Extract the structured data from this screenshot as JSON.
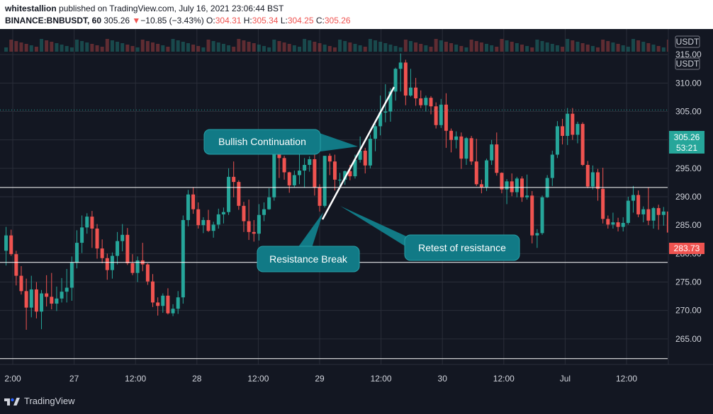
{
  "header": {
    "author": "whitestallion",
    "published_text": " published on TradingView.com, July 16, 2021 23:06:44 BST",
    "symbol": "BINANCE:BNBUSDT, 60",
    "last": "305.26",
    "change_arrow": "▼",
    "change": "−10.85 (−3.43%)",
    "o_label": "O:",
    "o": "304.31",
    "h_label": "H:",
    "h": "305.34",
    "l_label": "L:",
    "l": "304.25",
    "c_label": "C:",
    "c": "305.26"
  },
  "colors": {
    "background": "#131722",
    "up": "#26a69a",
    "down": "#ef5350",
    "callout": "#117a86",
    "grid": "#2a2e39",
    "axis_text": "#d1d4dc"
  },
  "chart_data": {
    "type": "candlestick",
    "ylim": [
      260.5,
      319.5
    ],
    "currency_labels": [
      "USDT",
      "USDT"
    ],
    "y_ticks": [
      "265.00",
      "270.00",
      "275.00",
      "280.00",
      "285.00",
      "290.00",
      "295.00",
      "300.00",
      "305.00",
      "310.00",
      "315.00"
    ],
    "x_ticks": [
      "2:00",
      "27",
      "12:00",
      "28",
      "12:00",
      "29",
      "12:00",
      "30",
      "12:00",
      "Jul",
      "12:00"
    ],
    "horizontal_levels": [
      "291.64",
      "278.46",
      "261.52"
    ],
    "current_price": "305.26",
    "countdown": "53:21",
    "last_close_label": "283.73",
    "annotations": [
      "Bullish Continuation",
      "Resistance Break",
      "Retest of resistance"
    ],
    "candles": [
      [
        280.5,
        284.7,
        277.9,
        283.2
      ],
      [
        283.2,
        284.2,
        279.6,
        279.9
      ],
      [
        279.9,
        280.5,
        274.4,
        276.1
      ],
      [
        276.1,
        277.8,
        272.8,
        273.4
      ],
      [
        273.4,
        275.6,
        266.6,
        270.5
      ],
      [
        270.5,
        276.1,
        268.8,
        273.7
      ],
      [
        273.7,
        275.0,
        268.6,
        269.8
      ],
      [
        269.8,
        273.6,
        266.7,
        273.0
      ],
      [
        273.0,
        276.2,
        270.7,
        272.4
      ],
      [
        272.4,
        276.6,
        270.2,
        271.2
      ],
      [
        271.2,
        274.2,
        269.9,
        272.1
      ],
      [
        272.1,
        275.7,
        271.4,
        273.3
      ],
      [
        273.3,
        277.3,
        271.4,
        274.0
      ],
      [
        274.0,
        279.5,
        271.7,
        278.4
      ],
      [
        278.4,
        284.1,
        277.4,
        281.9
      ],
      [
        281.9,
        286.7,
        280.1,
        284.6
      ],
      [
        284.6,
        287.1,
        283.5,
        286.5
      ],
      [
        286.5,
        287.5,
        281.0,
        284.4
      ],
      [
        284.4,
        285.2,
        279.1,
        280.9
      ],
      [
        280.9,
        282.5,
        278.3,
        279.2
      ],
      [
        279.2,
        280.0,
        275.4,
        277.1
      ],
      [
        277.1,
        280.2,
        275.6,
        279.6
      ],
      [
        279.6,
        283.8,
        278.1,
        282.2
      ],
      [
        282.2,
        285.2,
        280.4,
        283.3
      ],
      [
        283.3,
        284.5,
        278.0,
        278.3
      ],
      [
        278.3,
        279.9,
        276.2,
        276.6
      ],
      [
        276.6,
        279.5,
        275.0,
        278.8
      ],
      [
        278.8,
        281.9,
        276.9,
        278.1
      ],
      [
        278.1,
        278.3,
        274.5,
        275.1
      ],
      [
        275.1,
        276.4,
        270.6,
        271.4
      ],
      [
        271.4,
        272.3,
        269.1,
        270.8
      ],
      [
        270.8,
        273.0,
        269.6,
        272.6
      ],
      [
        272.6,
        273.9,
        269.3,
        269.5
      ],
      [
        269.5,
        271.1,
        269.0,
        270.3
      ],
      [
        270.3,
        273.4,
        269.4,
        272.3
      ],
      [
        272.3,
        286.7,
        271.2,
        285.9
      ],
      [
        285.9,
        291.2,
        284.8,
        290.4
      ],
      [
        290.4,
        291.7,
        287.0,
        287.8
      ],
      [
        287.8,
        289.0,
        284.4,
        285.0
      ],
      [
        285.0,
        286.4,
        283.6,
        285.9
      ],
      [
        285.9,
        287.7,
        283.8,
        284.0
      ],
      [
        284.0,
        285.6,
        282.8,
        285.1
      ],
      [
        285.1,
        287.9,
        284.4,
        286.9
      ],
      [
        286.9,
        288.1,
        285.3,
        287.3
      ],
      [
        287.3,
        295.0,
        286.8,
        293.5
      ],
      [
        293.5,
        296.2,
        289.9,
        292.6
      ],
      [
        292.6,
        292.9,
        287.7,
        288.4
      ],
      [
        288.4,
        289.1,
        283.8,
        285.7
      ],
      [
        285.7,
        289.5,
        282.4,
        283.8
      ],
      [
        283.8,
        285.9,
        282.1,
        283.5
      ],
      [
        283.5,
        288.7,
        282.3,
        286.8
      ],
      [
        286.8,
        289.0,
        285.7,
        287.8
      ],
      [
        287.8,
        291.5,
        287.7,
        289.9
      ],
      [
        289.9,
        300.1,
        289.3,
        297.9
      ],
      [
        297.9,
        300.0,
        293.3,
        296.8
      ],
      [
        296.8,
        297.2,
        293.0,
        294.3
      ],
      [
        294.3,
        294.4,
        290.7,
        292.0
      ],
      [
        292.0,
        294.6,
        291.7,
        293.8
      ],
      [
        293.8,
        297.5,
        292.2,
        294.6
      ],
      [
        294.6,
        296.8,
        291.6,
        295.6
      ],
      [
        295.6,
        297.1,
        294.4,
        296.6
      ],
      [
        296.6,
        297.4,
        290.2,
        291.6
      ],
      [
        291.6,
        292.2,
        287.4,
        288.4
      ],
      [
        288.4,
        297.2,
        288.1,
        297.2
      ],
      [
        297.2,
        297.6,
        293.8,
        296.2
      ],
      [
        296.2,
        297.4,
        291.1,
        293.0
      ],
      [
        293.0,
        294.2,
        291.6,
        293.0
      ],
      [
        293.0,
        294.6,
        292.1,
        294.5
      ],
      [
        294.5,
        295.6,
        292.9,
        293.6
      ],
      [
        293.6,
        297.4,
        293.2,
        296.5
      ],
      [
        296.5,
        300.6,
        296.0,
        298.1
      ],
      [
        298.1,
        298.6,
        294.1,
        295.5
      ],
      [
        295.5,
        300.9,
        295.0,
        300.2
      ],
      [
        300.2,
        302.8,
        298.0,
        302.4
      ],
      [
        302.4,
        307.8,
        300.8,
        304.8
      ],
      [
        304.8,
        309.8,
        303.1,
        305.0
      ],
      [
        305.0,
        309.1,
        303.2,
        308.5
      ],
      [
        308.5,
        312.7,
        306.9,
        312.5
      ],
      [
        312.5,
        315.2,
        308.5,
        313.6
      ],
      [
        313.6,
        314.1,
        306.1,
        307.8
      ],
      [
        307.8,
        312.5,
        307.6,
        309.2
      ],
      [
        309.2,
        310.9,
        306.0,
        307.3
      ],
      [
        307.3,
        308.7,
        305.6,
        306.1
      ],
      [
        306.1,
        307.8,
        305.0,
        307.4
      ],
      [
        307.4,
        307.7,
        304.5,
        305.9
      ],
      [
        305.9,
        306.6,
        302.0,
        302.6
      ],
      [
        302.6,
        307.2,
        302.1,
        306.2
      ],
      [
        306.2,
        308.2,
        298.6,
        301.6
      ],
      [
        301.6,
        302.0,
        297.8,
        300.0
      ],
      [
        300.0,
        301.5,
        298.5,
        300.6
      ],
      [
        300.6,
        301.3,
        294.9,
        296.7
      ],
      [
        296.7,
        300.5,
        295.6,
        300.3
      ],
      [
        300.3,
        300.7,
        295.6,
        296.2
      ],
      [
        296.2,
        300.2,
        291.9,
        292.2
      ],
      [
        292.2,
        293.0,
        290.6,
        291.7
      ],
      [
        291.7,
        296.7,
        291.0,
        296.4
      ],
      [
        296.4,
        300.0,
        295.6,
        299.2
      ],
      [
        299.2,
        301.3,
        293.7,
        294.2
      ],
      [
        294.2,
        294.3,
        290.6,
        291.3
      ],
      [
        291.3,
        293.1,
        288.7,
        292.7
      ],
      [
        292.7,
        294.1,
        290.1,
        290.8
      ],
      [
        290.8,
        293.5,
        289.9,
        293.2
      ],
      [
        293.2,
        293.6,
        289.1,
        289.9
      ],
      [
        289.9,
        293.9,
        289.5,
        290.2
      ],
      [
        290.2,
        291.0,
        281.8,
        283.2
      ],
      [
        283.2,
        284.3,
        281.0,
        283.6
      ],
      [
        283.6,
        290.2,
        283.3,
        289.9
      ],
      [
        289.9,
        293.8,
        289.8,
        293.3
      ],
      [
        293.3,
        298.1,
        291.9,
        297.4
      ],
      [
        297.4,
        303.3,
        296.8,
        302.4
      ],
      [
        302.4,
        303.7,
        299.2,
        300.7
      ],
      [
        300.7,
        305.6,
        299.1,
        304.6
      ],
      [
        304.6,
        305.6,
        300.0,
        300.9
      ],
      [
        300.9,
        303.2,
        299.4,
        302.8
      ],
      [
        302.8,
        303.1,
        295.4,
        295.6
      ],
      [
        295.6,
        296.3,
        291.5,
        291.8
      ],
      [
        291.8,
        295.5,
        291.3,
        294.3
      ],
      [
        294.3,
        294.9,
        289.3,
        291.4
      ],
      [
        291.4,
        295.1,
        285.3,
        286.1
      ],
      [
        286.1,
        286.7,
        284.4,
        285.1
      ],
      [
        285.1,
        287.2,
        284.4,
        285.5
      ],
      [
        285.5,
        286.3,
        283.9,
        284.7
      ],
      [
        284.7,
        286.4,
        283.9,
        285.4
      ],
      [
        285.4,
        290.0,
        285.1,
        289.3
      ],
      [
        289.3,
        291.9,
        287.2,
        290.3
      ],
      [
        290.3,
        291.1,
        286.4,
        286.9
      ],
      [
        286.9,
        288.3,
        285.5,
        287.8
      ],
      [
        287.8,
        291.6,
        285.0,
        285.8
      ],
      [
        285.8,
        288.2,
        284.4,
        288.0
      ],
      [
        288.0,
        288.6,
        284.2,
        286.8
      ],
      [
        286.8,
        288.2,
        284.9,
        287.4
      ],
      [
        287.4,
        287.7,
        282.0,
        283.7
      ]
    ]
  },
  "footer": {
    "brand": "TradingView"
  }
}
